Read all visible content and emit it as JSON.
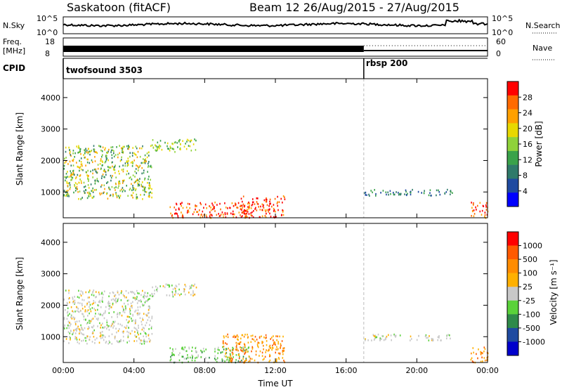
{
  "header": {
    "station": "Saskatoon (fitACF)",
    "beam_info": "Beam 12  26/Aug/2015 - 27/Aug/2015"
  },
  "noise_panel": {
    "left_label": "N.Sky",
    "left_ticks": [
      "10^5",
      "10^0"
    ],
    "right_ticks": [
      "10^5",
      "10^0"
    ],
    "right_label": "N.Search"
  },
  "freq_panel": {
    "left_label_line1": "Freq.",
    "left_label_line2": "[MHz]",
    "left_ticks": [
      "18",
      "8"
    ],
    "right_ticks": [
      "60",
      "0"
    ],
    "right_label": "Nave"
  },
  "cpid_panel": {
    "label": "CPID",
    "segments": [
      {
        "name": "twofsound 3503",
        "start_hour": 0
      },
      {
        "name": "rbsp 200",
        "start_hour": 17.0
      }
    ]
  },
  "colors": {
    "power": [
      "#0000ff",
      "#1f4aa0",
      "#2f7a6a",
      "#3aa24a",
      "#8fd23a",
      "#e8d800",
      "#ffa000",
      "#ff6a00",
      "#ff0000"
    ],
    "velocity": [
      "#ff0000",
      "#ff5a00",
      "#ff8c00",
      "#ffb000",
      "#c8c8c8",
      "#5ad23a",
      "#2f8a4a",
      "#1f4aa0",
      "#0000cc"
    ]
  },
  "chart_data": [
    {
      "type": "heatmap",
      "title": "",
      "xlabel": "",
      "ylabel": "Slant Range [km]",
      "xlim_hours": [
        0,
        24
      ],
      "ylim": [
        180,
        4600
      ],
      "yticks": [
        "1000",
        "2000",
        "3000",
        "4000"
      ],
      "x_ticks": [
        "00:00",
        "04:00",
        "08:00",
        "12:00",
        "16:00",
        "20:00",
        "00:00"
      ],
      "colorbar": {
        "label": "Power [dB]",
        "ticks": [
          "28",
          "24",
          "20",
          "16",
          "12",
          "8",
          "4"
        ],
        "range": [
          0,
          30
        ]
      },
      "echo_regions": [
        {
          "t0": 0.0,
          "t1": 5.0,
          "r_top": 2500,
          "r_bot": 800,
          "level": "mid-high"
        },
        {
          "t0": 5.0,
          "t1": 7.5,
          "r_top": 2700,
          "r_bot": 2300,
          "level": "mid"
        },
        {
          "t0": 6.0,
          "t1": 10.5,
          "r_top": 700,
          "r_bot": 200,
          "level": "high"
        },
        {
          "t0": 10.0,
          "t1": 12.5,
          "r_top": 900,
          "r_bot": 200,
          "level": "high"
        },
        {
          "t0": 17.0,
          "t1": 22.0,
          "r_top": 1100,
          "r_bot": 900,
          "level": "low"
        },
        {
          "t0": 23.0,
          "t1": 24.0,
          "r_top": 700,
          "r_bot": 200,
          "level": "high"
        }
      ]
    },
    {
      "type": "heatmap",
      "title": "",
      "xlabel": "Time UT",
      "ylabel": "Slant Range [km]",
      "xlim_hours": [
        0,
        24
      ],
      "ylim": [
        180,
        4600
      ],
      "yticks": [
        "1000",
        "2000",
        "3000",
        "4000"
      ],
      "x_ticks": [
        "00:00",
        "04:00",
        "08:00",
        "12:00",
        "16:00",
        "20:00",
        "00:00"
      ],
      "colorbar": {
        "label": "Velocity [m s⁻¹]",
        "ticks": [
          "1000",
          "500",
          "100",
          "25",
          "-25",
          "-100",
          "-500",
          "-1000"
        ],
        "range": [
          -1000,
          1000
        ]
      },
      "echo_regions": [
        {
          "t0": 0.0,
          "t1": 5.0,
          "r_top": 2500,
          "r_bot": 800,
          "level": "near-zero"
        },
        {
          "t0": 5.0,
          "t1": 7.5,
          "r_top": 2700,
          "r_bot": 2300,
          "level": "near-zero"
        },
        {
          "t0": 6.0,
          "t1": 10.5,
          "r_top": 700,
          "r_bot": 200,
          "level": "positive-low"
        },
        {
          "t0": 9.0,
          "t1": 12.5,
          "r_top": 1100,
          "r_bot": 200,
          "level": "negative"
        },
        {
          "t0": 17.0,
          "t1": 22.0,
          "r_top": 1100,
          "r_bot": 900,
          "level": "near-zero"
        },
        {
          "t0": 23.0,
          "t1": 24.0,
          "r_top": 700,
          "r_bot": 200,
          "level": "negative"
        }
      ]
    }
  ]
}
